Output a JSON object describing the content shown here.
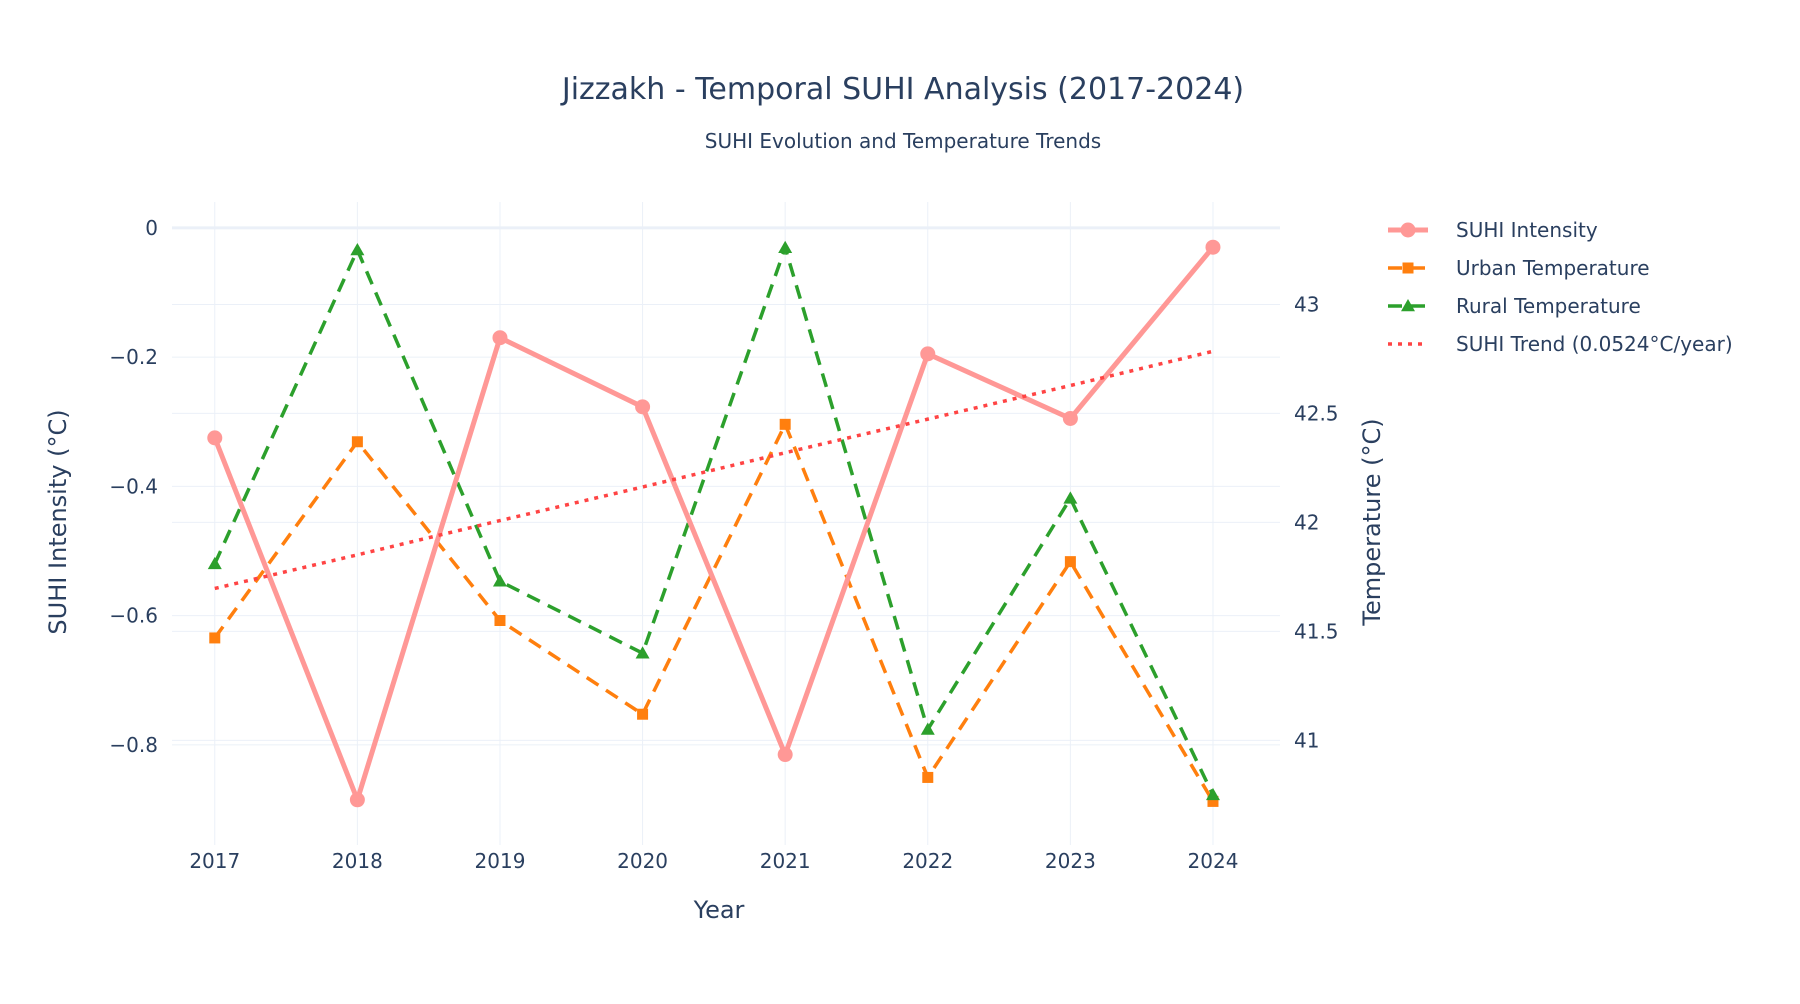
{
  "chart_data": {
    "type": "line",
    "title": "Jizzakh - Temporal SUHI Analysis (2017-2024)",
    "subtitle": "SUHI Evolution and Temperature Trends",
    "xlabel": "Year",
    "ylabel": "SUHI Intensity (°C)",
    "y2label": "Temperature (°C)",
    "x": [
      2017,
      2018,
      2019,
      2020,
      2021,
      2022,
      2023,
      2024
    ],
    "x_ticks": [
      "2017",
      "2018",
      "2019",
      "2020",
      "2021",
      "2022",
      "2023",
      "2024"
    ],
    "ylim": [
      -0.955,
      0.04
    ],
    "y_ticks": [
      0,
      -0.2,
      -0.4,
      -0.6,
      -0.8
    ],
    "y_tick_labels": [
      "0",
      "−0.2",
      "−0.4",
      "−0.6",
      "−0.8"
    ],
    "y2lim": [
      40.52,
      43.47
    ],
    "y2_ticks": [
      41,
      41.5,
      42,
      42.5,
      43
    ],
    "y2_tick_labels": [
      "41",
      "41.5",
      "42",
      "42.5",
      "43"
    ],
    "grid": true,
    "legend_position": "right",
    "series": [
      {
        "name": "SUHI Intensity",
        "axis": "y",
        "color": "#ff9896",
        "style": "solid",
        "marker": "circle",
        "values": [
          -0.325,
          -0.885,
          -0.17,
          -0.277,
          -0.815,
          -0.195,
          -0.295,
          -0.03
        ]
      },
      {
        "name": "Urban Temperature",
        "axis": "y2",
        "color": "#ff7f0e",
        "style": "dashed",
        "marker": "square",
        "values": [
          41.47,
          42.37,
          41.55,
          41.12,
          42.45,
          40.83,
          41.82,
          40.72
        ]
      },
      {
        "name": "Rural Temperature",
        "axis": "y2",
        "color": "#2ca02c",
        "style": "dashed",
        "marker": "triangle",
        "values": [
          41.81,
          43.25,
          41.73,
          41.4,
          43.26,
          41.05,
          42.11,
          40.75
        ]
      },
      {
        "name": "SUHI Trend (0.0524°C/year)",
        "axis": "y",
        "color": "#ff4444",
        "style": "dotted",
        "marker": "none",
        "values": [
          -0.558,
          -0.506,
          -0.453,
          -0.401,
          -0.348,
          -0.296,
          -0.244,
          -0.191
        ]
      }
    ]
  }
}
